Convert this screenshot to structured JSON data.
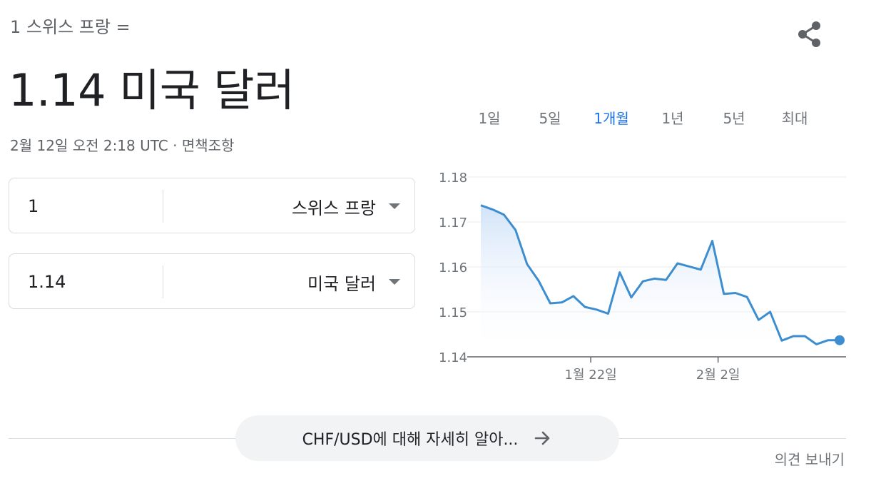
{
  "header": {
    "subtitle": "1 스위스 프랑 =",
    "result": "1.14 미국 달러",
    "timestamp": "2월 12일 오전 2:18 UTC · ",
    "disclaimer_link": "면책조항"
  },
  "converter": {
    "from": {
      "value": "1",
      "currency": "스위스 프랑"
    },
    "to": {
      "value": "1.14",
      "currency": "미국 달러"
    }
  },
  "range_tabs": {
    "items": [
      "1일",
      "5일",
      "1개월",
      "1년",
      "5년",
      "최대"
    ],
    "active": "1개월"
  },
  "chart_data": {
    "type": "area",
    "y_ticks": [
      "1.18",
      "1.17",
      "1.16",
      "1.15",
      "1.14"
    ],
    "ylim": [
      1.14,
      1.18
    ],
    "x_ticks": [
      {
        "label": "1월 22일",
        "index": 9.5
      },
      {
        "label": "2월 2일",
        "index": 20.5
      }
    ],
    "values": [
      1.1737,
      1.1728,
      1.1716,
      1.1682,
      1.1606,
      1.1569,
      1.1519,
      1.1521,
      1.1535,
      1.1511,
      1.1505,
      1.1496,
      1.1588,
      1.1532,
      1.1568,
      1.1574,
      1.1571,
      1.1608,
      1.1601,
      1.1594,
      1.1658,
      1.154,
      1.1542,
      1.1533,
      1.1482,
      1.15,
      1.1436,
      1.1446,
      1.1446,
      1.1428,
      1.1437,
      1.1437
    ],
    "line_color": "#3d8ed0",
    "fill_color": "#d6e6f9",
    "grid": true,
    "last_point_marker": true
  },
  "learn_more": {
    "label": "CHF/USD에 대해 자세히 알아..."
  },
  "footer": {
    "feedback": "의견 보내기"
  },
  "colors": {
    "accent": "#1a73e8",
    "text": "#202124",
    "muted": "#70757a",
    "border": "#dadce0"
  }
}
